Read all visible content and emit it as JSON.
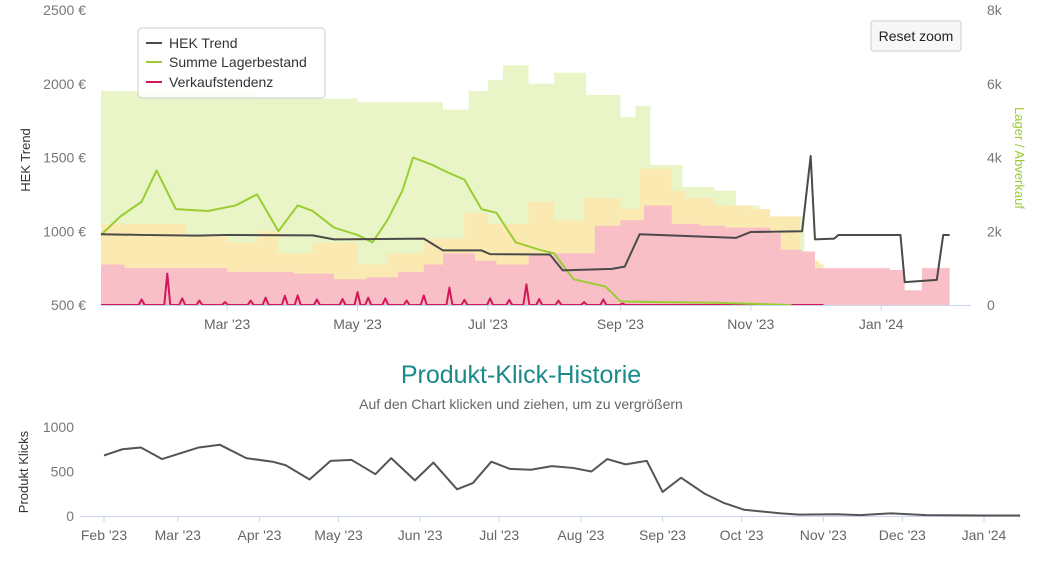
{
  "colors": {
    "hek": "#4a4a4a",
    "stock": "#9acd32",
    "sales": "#d2185a",
    "area_green": "#e9f5c6",
    "area_yellow": "#fbe9b2",
    "area_red": "#f9bfc6",
    "clicks": "#555555",
    "title": "#1a8a8a"
  },
  "reset_zoom_label": "Reset zoom",
  "chart_data": [
    {
      "type": "line",
      "title": "",
      "xlabel": "",
      "ylabel": "HEK Trend",
      "y2label": "Lager / Abverkauf",
      "x_range": [
        "2023-01-01",
        "2024-02-12"
      ],
      "ylim": [
        500,
        2500
      ],
      "y2lim": [
        0,
        8000
      ],
      "grid": false,
      "legend_position": "top-left",
      "x_ticks": [
        {
          "date": "2023-03-01",
          "label": "Mar '23"
        },
        {
          "date": "2023-05-01",
          "label": "May '23"
        },
        {
          "date": "2023-07-01",
          "label": "Jul '23"
        },
        {
          "date": "2023-09-01",
          "label": "Sep '23"
        },
        {
          "date": "2023-11-01",
          "label": "Nov '23"
        },
        {
          "date": "2024-01-01",
          "label": "Jan '24"
        }
      ],
      "y_ticks": [
        {
          "value": 500,
          "label": "500 €"
        },
        {
          "value": 1000,
          "label": "1000 €"
        },
        {
          "value": 1500,
          "label": "1500 €"
        },
        {
          "value": 2000,
          "label": "2000 €"
        },
        {
          "value": 2500,
          "label": "2500 €"
        }
      ],
      "y2_ticks": [
        {
          "value": 0,
          "label": "0"
        },
        {
          "value": 2000,
          "label": "2k"
        },
        {
          "value": 4000,
          "label": "4k"
        },
        {
          "value": 6000,
          "label": "6k"
        },
        {
          "value": 8000,
          "label": "8k"
        }
      ],
      "legend": [
        "HEK Trend",
        "Summe Lagerbestand",
        "Verkaufstendenz"
      ],
      "series": [
        {
          "name": "HEK Trend",
          "axis": "left",
          "points": [
            [
              "2023-01-01",
              980
            ],
            [
              "2023-01-20",
              975
            ],
            [
              "2023-02-15",
              970
            ],
            [
              "2023-03-01",
              975
            ],
            [
              "2023-04-10",
              972
            ],
            [
              "2023-04-20",
              945
            ],
            [
              "2023-06-01",
              950
            ],
            [
              "2023-06-10",
              870
            ],
            [
              "2023-06-28",
              870
            ],
            [
              "2023-07-02",
              845
            ],
            [
              "2023-07-30",
              842
            ],
            [
              "2023-08-05",
              735
            ],
            [
              "2023-08-28",
              745
            ],
            [
              "2023-09-03",
              760
            ],
            [
              "2023-09-10",
              980
            ],
            [
              "2023-10-25",
              955
            ],
            [
              "2023-11-01",
              995
            ],
            [
              "2023-11-25",
              1000
            ],
            [
              "2023-11-29",
              1510
            ],
            [
              "2023-12-01",
              945
            ],
            [
              "2023-12-10",
              950
            ],
            [
              "2023-12-12",
              975
            ],
            [
              "2024-01-10",
              975
            ],
            [
              "2024-01-12",
              655
            ],
            [
              "2024-01-27",
              670
            ],
            [
              "2024-01-30",
              975
            ],
            [
              "2024-02-02",
              975
            ]
          ]
        },
        {
          "name": "Summe Lagerbestand",
          "axis": "right",
          "points": [
            [
              "2023-01-01",
              1900
            ],
            [
              "2023-01-10",
              2400
            ],
            [
              "2023-01-20",
              2800
            ],
            [
              "2023-01-27",
              3650
            ],
            [
              "2023-02-05",
              2600
            ],
            [
              "2023-02-20",
              2550
            ],
            [
              "2023-03-05",
              2700
            ],
            [
              "2023-03-15",
              3000
            ],
            [
              "2023-03-25",
              2000
            ],
            [
              "2023-04-03",
              2700
            ],
            [
              "2023-04-10",
              2550
            ],
            [
              "2023-04-20",
              2100
            ],
            [
              "2023-05-01",
              1900
            ],
            [
              "2023-05-08",
              1700
            ],
            [
              "2023-05-15",
              2300
            ],
            [
              "2023-05-22",
              3100
            ],
            [
              "2023-05-27",
              4000
            ],
            [
              "2023-06-05",
              3800
            ],
            [
              "2023-06-12",
              3600
            ],
            [
              "2023-06-20",
              3400
            ],
            [
              "2023-06-28",
              2600
            ],
            [
              "2023-07-05",
              2500
            ],
            [
              "2023-07-14",
              1700
            ],
            [
              "2023-07-25",
              1500
            ],
            [
              "2023-08-01",
              1400
            ],
            [
              "2023-08-10",
              700
            ],
            [
              "2023-08-25",
              500
            ],
            [
              "2023-09-01",
              100
            ],
            [
              "2023-09-15",
              80
            ],
            [
              "2023-10-15",
              60
            ],
            [
              "2023-11-20",
              0
            ]
          ]
        },
        {
          "name": "Verkaufstendenz",
          "axis": "right",
          "baseline": 0,
          "spikes": [
            [
              "2023-01-20",
              150
            ],
            [
              "2023-02-01",
              850
            ],
            [
              "2023-02-08",
              180
            ],
            [
              "2023-02-16",
              120
            ],
            [
              "2023-02-28",
              80
            ],
            [
              "2023-03-12",
              120
            ],
            [
              "2023-03-19",
              200
            ],
            [
              "2023-03-28",
              250
            ],
            [
              "2023-04-03",
              260
            ],
            [
              "2023-04-12",
              150
            ],
            [
              "2023-04-24",
              160
            ],
            [
              "2023-05-01",
              350
            ],
            [
              "2023-05-06",
              200
            ],
            [
              "2023-05-14",
              180
            ],
            [
              "2023-05-24",
              120
            ],
            [
              "2023-06-01",
              260
            ],
            [
              "2023-06-13",
              470
            ],
            [
              "2023-06-20",
              140
            ],
            [
              "2023-07-02",
              180
            ],
            [
              "2023-07-11",
              140
            ],
            [
              "2023-07-19",
              560
            ],
            [
              "2023-07-25",
              160
            ],
            [
              "2023-08-03",
              120
            ],
            [
              "2023-08-15",
              80
            ],
            [
              "2023-08-24",
              150
            ],
            [
              "2023-09-02",
              40
            ]
          ]
        },
        {
          "name": "Stock area (green)",
          "axis": "right",
          "points": [
            [
              "2023-01-01",
              5800
            ],
            [
              "2023-03-10",
              5800
            ],
            [
              "2023-03-15",
              5600
            ],
            [
              "2023-04-01",
              5600
            ],
            [
              "2023-05-01",
              5500
            ],
            [
              "2023-06-10",
              5300
            ],
            [
              "2023-06-22",
              5800
            ],
            [
              "2023-07-01",
              6100
            ],
            [
              "2023-07-08",
              6500
            ],
            [
              "2023-07-20",
              6000
            ],
            [
              "2023-08-01",
              6300
            ],
            [
              "2023-08-16",
              5700
            ],
            [
              "2023-09-01",
              5100
            ],
            [
              "2023-09-08",
              5400
            ],
            [
              "2023-09-15",
              3800
            ],
            [
              "2023-09-30",
              3200
            ],
            [
              "2023-10-15",
              3100
            ],
            [
              "2023-10-25",
              2700
            ],
            [
              "2023-11-05",
              2400
            ],
            [
              "2023-11-20",
              2400
            ],
            [
              "2023-11-26",
              1100
            ],
            [
              "2023-12-03",
              1100
            ],
            [
              "2023-12-05",
              0
            ]
          ]
        },
        {
          "name": "Stock area (yellow)",
          "axis": "right",
          "points": [
            [
              "2023-01-01",
              2200
            ],
            [
              "2023-01-25",
              2200
            ],
            [
              "2023-02-10",
              1900
            ],
            [
              "2023-03-01",
              1700
            ],
            [
              "2023-03-15",
              2000
            ],
            [
              "2023-03-25",
              1400
            ],
            [
              "2023-04-10",
              1700
            ],
            [
              "2023-05-01",
              1100
            ],
            [
              "2023-05-15",
              1400
            ],
            [
              "2023-06-01",
              1800
            ],
            [
              "2023-06-20",
              2500
            ],
            [
              "2023-07-01",
              2200
            ],
            [
              "2023-07-20",
              2800
            ],
            [
              "2023-08-01",
              2300
            ],
            [
              "2023-08-15",
              2900
            ],
            [
              "2023-09-01",
              2600
            ],
            [
              "2023-09-10",
              3700
            ],
            [
              "2023-09-25",
              3100
            ],
            [
              "2023-10-01",
              2900
            ],
            [
              "2023-10-15",
              2700
            ],
            [
              "2023-11-01",
              2600
            ],
            [
              "2023-11-10",
              2400
            ],
            [
              "2023-11-24",
              1200
            ],
            [
              "2023-12-03",
              1100
            ],
            [
              "2023-12-05",
              0
            ]
          ]
        },
        {
          "name": "Stock area (red)",
          "axis": "right",
          "points": [
            [
              "2023-01-01",
              1100
            ],
            [
              "2023-01-08",
              1100
            ],
            [
              "2023-01-12",
              1000
            ],
            [
              "2023-02-20",
              1000
            ],
            [
              "2023-03-01",
              900
            ],
            [
              "2023-04-01",
              850
            ],
            [
              "2023-04-20",
              700
            ],
            [
              "2023-05-05",
              750
            ],
            [
              "2023-05-20",
              900
            ],
            [
              "2023-06-01",
              1100
            ],
            [
              "2023-06-10",
              1400
            ],
            [
              "2023-06-25",
              1200
            ],
            [
              "2023-07-05",
              1100
            ],
            [
              "2023-07-20",
              1350
            ],
            [
              "2023-08-01",
              1400
            ],
            [
              "2023-08-20",
              2150
            ],
            [
              "2023-09-01",
              2300
            ],
            [
              "2023-09-12",
              2700
            ],
            [
              "2023-09-25",
              2200
            ],
            [
              "2023-10-08",
              2150
            ],
            [
              "2023-10-20",
              2100
            ],
            [
              "2023-11-10",
              1950
            ],
            [
              "2023-11-15",
              1500
            ],
            [
              "2023-11-25",
              1450
            ],
            [
              "2023-12-01",
              1000
            ],
            [
              "2023-12-20",
              1000
            ],
            [
              "2024-01-05",
              950
            ],
            [
              "2024-01-12",
              400
            ],
            [
              "2024-01-20",
              1000
            ],
            [
              "2024-02-02",
              1000
            ],
            [
              "2024-02-02",
              0
            ]
          ]
        }
      ]
    },
    {
      "type": "line",
      "title": "Produkt-Klick-Historie",
      "subtitle": "Auf den Chart klicken und ziehen, um zu vergrößern",
      "xlabel": "",
      "ylabel": "Produkt Klicks",
      "x_range": [
        "2023-02-01",
        "2024-02-15"
      ],
      "ylim": [
        0,
        1000
      ],
      "grid": false,
      "x_ticks": [
        {
          "date": "2023-02-01",
          "label": "Feb '23"
        },
        {
          "date": "2023-03-01",
          "label": "Mar '23"
        },
        {
          "date": "2023-04-01",
          "label": "Apr '23"
        },
        {
          "date": "2023-05-01",
          "label": "May '23"
        },
        {
          "date": "2023-06-01",
          "label": "Jun '23"
        },
        {
          "date": "2023-07-01",
          "label": "Jul '23"
        },
        {
          "date": "2023-08-01",
          "label": "Aug '23"
        },
        {
          "date": "2023-09-01",
          "label": "Sep '23"
        },
        {
          "date": "2023-10-01",
          "label": "Oct '23"
        },
        {
          "date": "2023-11-01",
          "label": "Nov '23"
        },
        {
          "date": "2023-12-01",
          "label": "Dec '23"
        },
        {
          "date": "2024-01-01",
          "label": "Jan '24"
        }
      ],
      "y_ticks": [
        {
          "value": 0,
          "label": "0"
        },
        {
          "value": 500,
          "label": "500"
        },
        {
          "value": 1000,
          "label": "1000"
        }
      ],
      "series": [
        {
          "name": "Produkt Klicks",
          "points": [
            [
              "2023-02-01",
              680
            ],
            [
              "2023-02-08",
              750
            ],
            [
              "2023-02-15",
              770
            ],
            [
              "2023-02-23",
              640
            ],
            [
              "2023-03-09",
              770
            ],
            [
              "2023-03-17",
              800
            ],
            [
              "2023-03-27",
              650
            ],
            [
              "2023-04-06",
              610
            ],
            [
              "2023-04-11",
              570
            ],
            [
              "2023-04-20",
              410
            ],
            [
              "2023-04-28",
              620
            ],
            [
              "2023-05-06",
              630
            ],
            [
              "2023-05-15",
              470
            ],
            [
              "2023-05-21",
              650
            ],
            [
              "2023-05-30",
              400
            ],
            [
              "2023-06-06",
              600
            ],
            [
              "2023-06-15",
              300
            ],
            [
              "2023-06-21",
              370
            ],
            [
              "2023-06-28",
              610
            ],
            [
              "2023-07-05",
              530
            ],
            [
              "2023-07-13",
              520
            ],
            [
              "2023-07-21",
              560
            ],
            [
              "2023-07-29",
              540
            ],
            [
              "2023-08-05",
              500
            ],
            [
              "2023-08-11",
              640
            ],
            [
              "2023-08-18",
              580
            ],
            [
              "2023-08-26",
              620
            ],
            [
              "2023-09-01",
              270
            ],
            [
              "2023-09-08",
              430
            ],
            [
              "2023-09-17",
              250
            ],
            [
              "2023-09-24",
              150
            ],
            [
              "2023-10-02",
              70
            ],
            [
              "2023-10-16",
              30
            ],
            [
              "2023-10-23",
              15
            ],
            [
              "2023-11-06",
              20
            ],
            [
              "2023-11-15",
              10
            ],
            [
              "2023-11-27",
              30
            ],
            [
              "2023-12-10",
              10
            ],
            [
              "2024-01-01",
              5
            ],
            [
              "2024-02-12",
              5
            ]
          ]
        }
      ]
    }
  ]
}
